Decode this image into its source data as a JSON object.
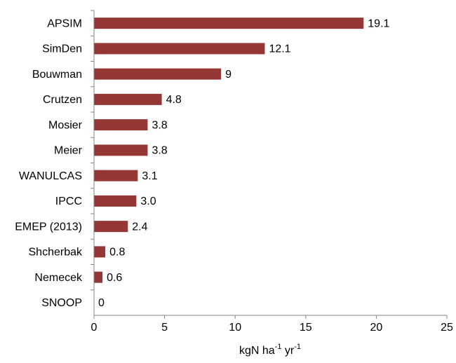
{
  "chart_data": {
    "type": "hbar",
    "categories": [
      "APSIM",
      "SimDen",
      "Bouwman",
      "Crutzen",
      "Mosier",
      "Meier",
      "WANULCAS",
      "IPCC",
      "EMEP (2013)",
      "Shcherbak",
      "Nemecek",
      "SNOOP"
    ],
    "values": [
      19.1,
      12.1,
      9,
      4.8,
      3.8,
      3.8,
      3.1,
      3.0,
      2.4,
      0.8,
      0.6,
      0
    ],
    "value_labels": [
      "19.1",
      "12.1",
      "9",
      "4.8",
      "3.8",
      "3.8",
      "3.1",
      "3.0",
      "2.4",
      "0.8",
      "0.6",
      "0"
    ],
    "color": "#953735",
    "xlim": [
      0,
      25
    ],
    "xticks": [
      0,
      5,
      10,
      15,
      20,
      25
    ],
    "xlabel": [
      "kgN ha",
      "-1",
      " yr",
      "-1"
    ],
    "grid": false
  }
}
